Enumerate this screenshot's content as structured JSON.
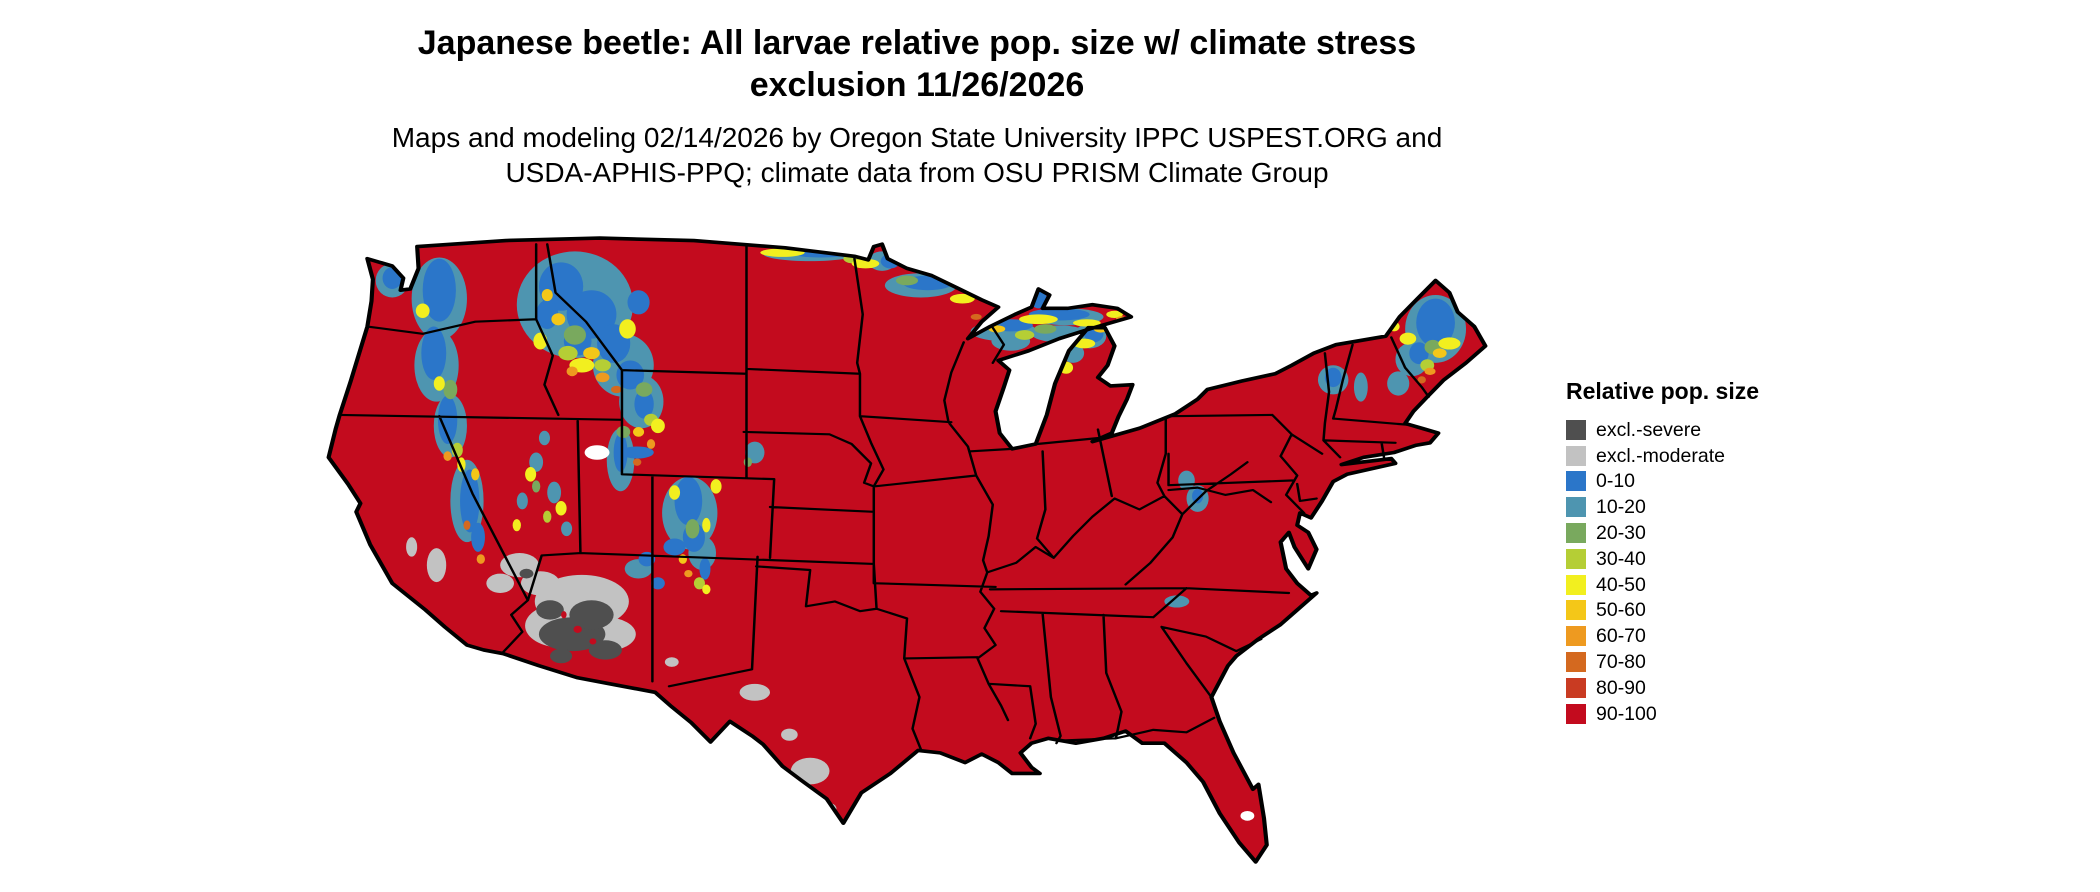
{
  "header": {
    "title_lines": [
      "Japanese beetle: All larvae relative pop. size w/ climate stress",
      "exclusion 11/26/2026"
    ],
    "subtitle_lines": [
      "Maps and modeling 02/14/2026 by Oregon State University IPPC USPEST.ORG and",
      "USDA-APHIS-PPQ; climate data from OSU PRISM Climate Group"
    ]
  },
  "legend": {
    "title": "Relative pop. size",
    "items": [
      {
        "label": "excl.-severe",
        "color": "#4f4f4f"
      },
      {
        "label": "excl.-moderate",
        "color": "#c2c2c2"
      },
      {
        "label": "0-10",
        "color": "#2b76c9"
      },
      {
        "label": "10-20",
        "color": "#4e95b0"
      },
      {
        "label": "20-30",
        "color": "#79a95e"
      },
      {
        "label": "30-40",
        "color": "#b5ce35"
      },
      {
        "label": "40-50",
        "color": "#f2ef1f"
      },
      {
        "label": "50-60",
        "color": "#f4c718"
      },
      {
        "label": "60-70",
        "color": "#ee9a20"
      },
      {
        "label": "70-80",
        "color": "#d4691f"
      },
      {
        "label": "80-90",
        "color": "#c93b22"
      },
      {
        "label": "90-100",
        "color": "#c30b1e"
      }
    ]
  },
  "map": {
    "area": "Continental United States",
    "dominant_class": "90-100",
    "exclusion_severe_areas": "southwestern Arizona",
    "exclusion_moderate_areas": "southern Arizona fringe, Mojave Desert, southern Texas",
    "low_population_areas": "Cascades, Sierra Nevada, northern Rockies, Colorado Rockies, Great Lakes shores, northern Minnesota, northern Maine"
  }
}
